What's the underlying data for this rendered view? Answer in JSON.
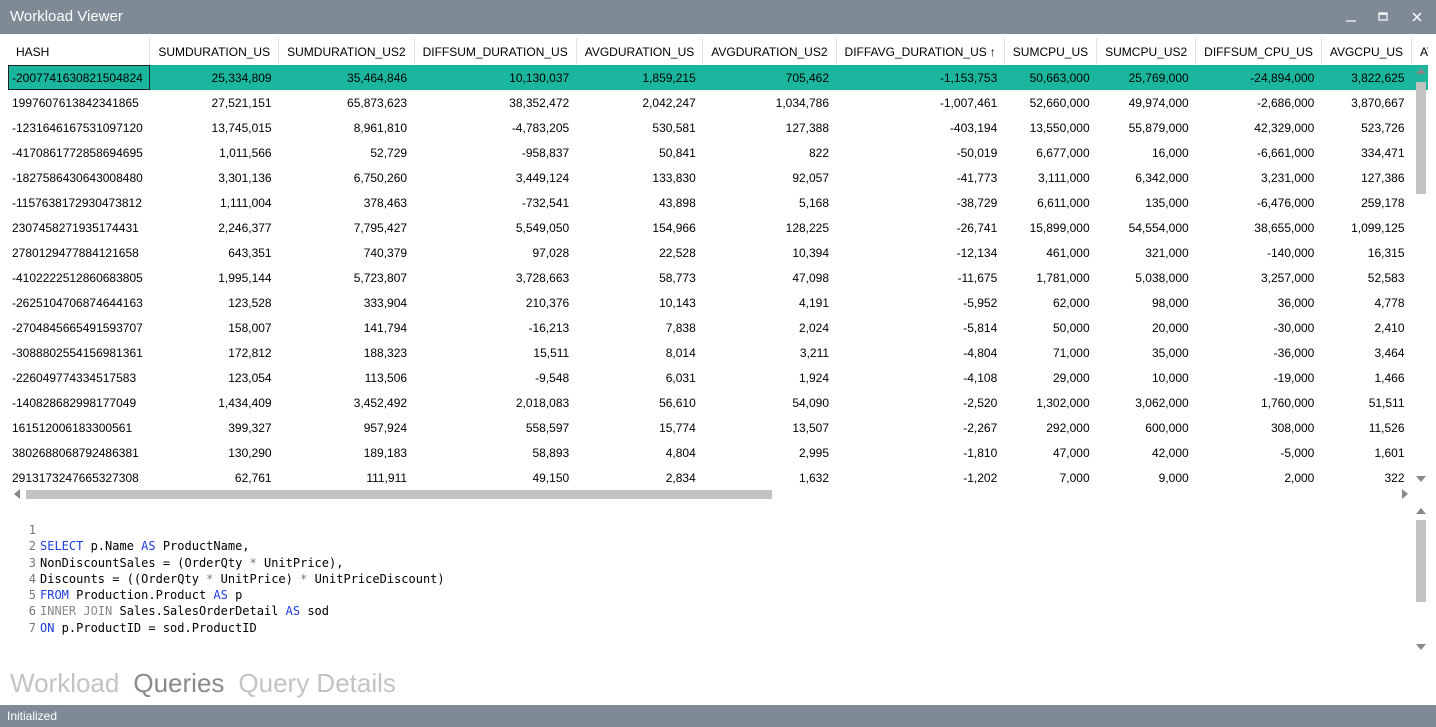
{
  "window": {
    "title": "Workload Viewer"
  },
  "grid": {
    "columns": [
      {
        "label": "HASH",
        "sort": ""
      },
      {
        "label": "SUMDURATION_US",
        "sort": ""
      },
      {
        "label": "SUMDURATION_US2",
        "sort": ""
      },
      {
        "label": "DIFFSUM_DURATION_US",
        "sort": ""
      },
      {
        "label": "AVGDURATION_US",
        "sort": ""
      },
      {
        "label": "AVGDURATION_US2",
        "sort": ""
      },
      {
        "label": "DIFFAVG_DURATION_US",
        "sort": "↑"
      },
      {
        "label": "SUMCPU_US",
        "sort": ""
      },
      {
        "label": "SUMCPU_US2",
        "sort": ""
      },
      {
        "label": "DIFFSUM_CPU_US",
        "sort": ""
      },
      {
        "label": "AVGCPU_US",
        "sort": ""
      },
      {
        "label": "AV",
        "sort": ""
      }
    ],
    "selected_row": 0,
    "rows": [
      [
        "-2007741630821504824",
        "25,334,809",
        "35,464,846",
        "10,130,037",
        "1,859,215",
        "705,462",
        "-1,153,753",
        "50,663,000",
        "25,769,000",
        "-24,894,000",
        "3,822,625",
        ""
      ],
      [
        "1997607613842341865",
        "27,521,151",
        "65,873,623",
        "38,352,472",
        "2,042,247",
        "1,034,786",
        "-1,007,461",
        "52,660,000",
        "49,974,000",
        "-2,686,000",
        "3,870,667",
        ""
      ],
      [
        "-1231646167531097120",
        "13,745,015",
        "8,961,810",
        "-4,783,205",
        "530,581",
        "127,388",
        "-403,194",
        "13,550,000",
        "55,879,000",
        "42,329,000",
        "523,726",
        ""
      ],
      [
        "-4170861772858694695",
        "1,011,566",
        "52,729",
        "-958,837",
        "50,841",
        "822",
        "-50,019",
        "6,677,000",
        "16,000",
        "-6,661,000",
        "334,471",
        ""
      ],
      [
        "-1827586430643008480",
        "3,301,136",
        "6,750,260",
        "3,449,124",
        "133,830",
        "92,057",
        "-41,773",
        "3,111,000",
        "6,342,000",
        "3,231,000",
        "127,386",
        ""
      ],
      [
        "-1157638172930473812",
        "1,111,004",
        "378,463",
        "-732,541",
        "43,898",
        "5,168",
        "-38,729",
        "6,611,000",
        "135,000",
        "-6,476,000",
        "259,178",
        ""
      ],
      [
        "2307458271935174431",
        "2,246,377",
        "7,795,427",
        "5,549,050",
        "154,966",
        "128,225",
        "-26,741",
        "15,899,000",
        "54,554,000",
        "38,655,000",
        "1,099,125",
        ""
      ],
      [
        "2780129477884121658",
        "643,351",
        "740,379",
        "97,028",
        "22,528",
        "10,394",
        "-12,134",
        "461,000",
        "321,000",
        "-140,000",
        "16,315",
        ""
      ],
      [
        "-4102222512860683805",
        "1,995,144",
        "5,723,807",
        "3,728,663",
        "58,773",
        "47,098",
        "-11,675",
        "1,781,000",
        "5,038,000",
        "3,257,000",
        "52,583",
        ""
      ],
      [
        "-2625104706874644163",
        "123,528",
        "333,904",
        "210,376",
        "10,143",
        "4,191",
        "-5,952",
        "62,000",
        "98,000",
        "36,000",
        "4,778",
        ""
      ],
      [
        "-2704845665491593707",
        "158,007",
        "141,794",
        "-16,213",
        "7,838",
        "2,024",
        "-5,814",
        "50,000",
        "20,000",
        "-30,000",
        "2,410",
        ""
      ],
      [
        "-3088802554156981361",
        "172,812",
        "188,323",
        "15,511",
        "8,014",
        "3,211",
        "-4,804",
        "71,000",
        "35,000",
        "-36,000",
        "3,464",
        ""
      ],
      [
        "-226049774334517583",
        "123,054",
        "113,506",
        "-9,548",
        "6,031",
        "1,924",
        "-4,108",
        "29,000",
        "10,000",
        "-19,000",
        "1,466",
        ""
      ],
      [
        "-140828682998177049",
        "1,434,409",
        "3,452,492",
        "2,018,083",
        "56,610",
        "54,090",
        "-2,520",
        "1,302,000",
        "3,062,000",
        "1,760,000",
        "51,511",
        ""
      ],
      [
        "161512006183300561",
        "399,327",
        "957,924",
        "558,597",
        "15,774",
        "13,507",
        "-2,267",
        "292,000",
        "600,000",
        "308,000",
        "11,526",
        ""
      ],
      [
        "3802688068792486381",
        "130,290",
        "189,183",
        "58,893",
        "4,804",
        "2,995",
        "-1,810",
        "47,000",
        "42,000",
        "-5,000",
        "1,601",
        ""
      ],
      [
        "2913173247665327308",
        "62,761",
        "111,911",
        "49,150",
        "2,834",
        "1,632",
        "-1,202",
        "7,000",
        "9,000",
        "2,000",
        "322",
        ""
      ]
    ]
  },
  "editor": {
    "lines": [
      {
        "n": "1",
        "tokens": []
      },
      {
        "n": "2",
        "tokens": [
          [
            "kw",
            "SELECT"
          ],
          [
            "",
            " p.Name "
          ],
          [
            "kw",
            "AS"
          ],
          [
            "",
            " ProductName,"
          ]
        ]
      },
      {
        "n": "3",
        "tokens": [
          [
            "",
            "NonDiscountSales = (OrderQty "
          ],
          [
            "op",
            "*"
          ],
          [
            "",
            " UnitPrice),"
          ]
        ]
      },
      {
        "n": "4",
        "tokens": [
          [
            "",
            "Discounts = ((OrderQty "
          ],
          [
            "op",
            "*"
          ],
          [
            "",
            " UnitPrice) "
          ],
          [
            "op",
            "*"
          ],
          [
            "",
            " UnitPriceDiscount)"
          ]
        ]
      },
      {
        "n": "5",
        "tokens": [
          [
            "kw",
            "FROM"
          ],
          [
            "",
            " Production.Product "
          ],
          [
            "kw",
            "AS"
          ],
          [
            "",
            " p"
          ]
        ]
      },
      {
        "n": "6",
        "tokens": [
          [
            "kwg",
            "INNER JOIN"
          ],
          [
            "",
            " Sales.SalesOrderDetail "
          ],
          [
            "kw",
            "AS"
          ],
          [
            "",
            " sod"
          ]
        ]
      },
      {
        "n": "7",
        "tokens": [
          [
            "kw",
            "ON"
          ],
          [
            "",
            " p.ProductID = sod.ProductID"
          ]
        ]
      }
    ]
  },
  "tabs": [
    {
      "label": "Workload",
      "active": false
    },
    {
      "label": "Queries",
      "active": true
    },
    {
      "label": "Query Details",
      "active": false
    }
  ],
  "status": {
    "text": "Initialized"
  },
  "colors": {
    "titlebar": "#7e8a96",
    "selected_row": "#1ab69d",
    "keyword": "#1d3ee0"
  }
}
